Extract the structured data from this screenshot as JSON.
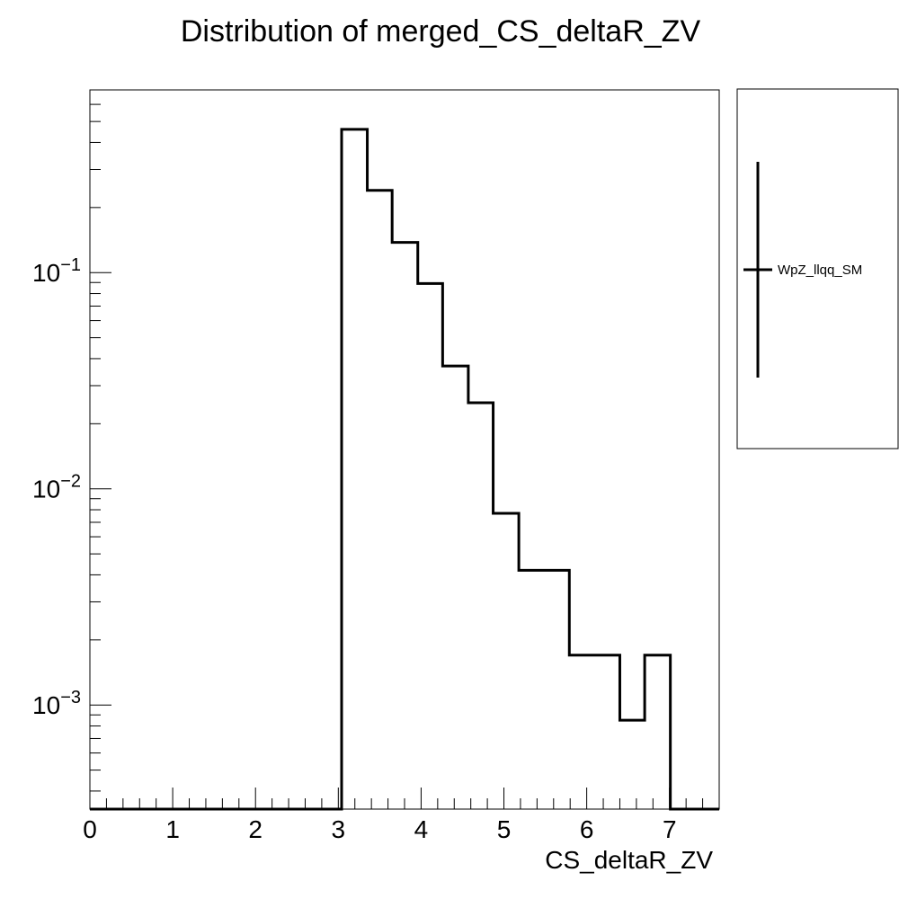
{
  "chart_data": {
    "type": "histogram",
    "title": "Distribution of merged_CS_deltaR_ZV",
    "xlabel": "CS_deltaR_ZV",
    "ylabel": "",
    "xlim": [
      0,
      7.6
    ],
    "ylim": [
      0.00033,
      0.7
    ],
    "y_scale": "log",
    "x_ticks": [
      "0",
      "1",
      "2",
      "3",
      "4",
      "5",
      "6",
      "7"
    ],
    "y_ticks": [
      {
        "base": "10",
        "exp": "−1",
        "value": 0.1
      },
      {
        "base": "10",
        "exp": "−2",
        "value": 0.01
      },
      {
        "base": "10",
        "exp": "−3",
        "value": 0.001
      }
    ],
    "legend_position": "right",
    "series": [
      {
        "name": "WpZ_llqq_SM",
        "color": "#000000",
        "bin_edges": [
          3.04,
          3.35,
          3.65,
          3.96,
          4.26,
          4.57,
          4.87,
          5.18,
          5.48,
          5.79,
          6.09,
          6.4,
          6.7,
          7.01
        ],
        "values": [
          0.46,
          0.24,
          0.138,
          0.089,
          0.037,
          0.025,
          0.0077,
          0.0042,
          0.0042,
          0.0017,
          0.0017,
          0.00085,
          0.0017
        ]
      }
    ],
    "grid": false
  }
}
